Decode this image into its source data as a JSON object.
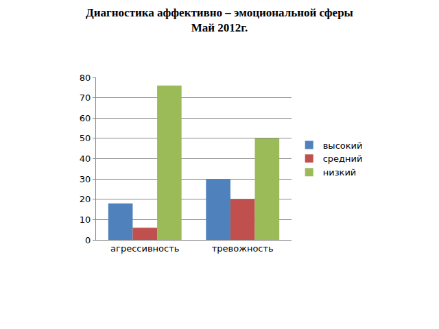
{
  "chart_data": {
    "type": "bar",
    "title": "Диагностика аффективно – эмоциональной сферы",
    "subtitle": "Май 2012г.",
    "categories": [
      "агрессивность",
      "тревожность"
    ],
    "series": [
      {
        "name": "высокий",
        "color": "#4f81bd",
        "values": [
          18,
          30
        ]
      },
      {
        "name": "средний",
        "color": "#c0504d",
        "values": [
          6,
          20
        ]
      },
      {
        "name": "низкий",
        "color": "#9bbb59",
        "values": [
          76,
          50
        ]
      }
    ],
    "ylim": [
      0,
      80
    ],
    "yticks": [
      0,
      10,
      20,
      30,
      40,
      50,
      60,
      70,
      80
    ],
    "grid": true,
    "legend": "right"
  }
}
